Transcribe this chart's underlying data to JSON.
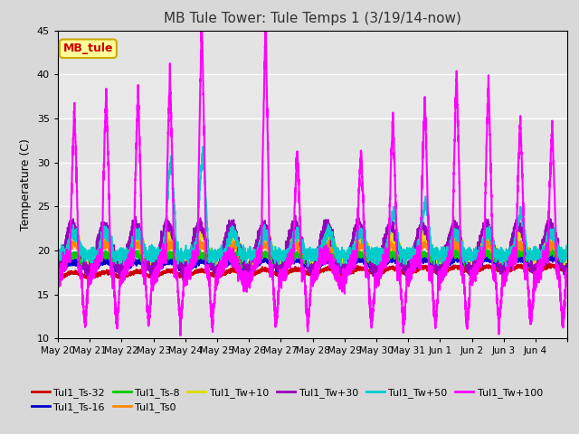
{
  "title": "MB Tule Tower: Tule Temps 1 (3/19/14-now)",
  "ylabel": "Temperature (C)",
  "ylim": [
    10,
    45
  ],
  "yticks": [
    10,
    15,
    20,
    25,
    30,
    35,
    40,
    45
  ],
  "fig_bg": "#d8d8d8",
  "plot_bg": "#e8e8e8",
  "legend_box_facecolor": "#ffff99",
  "legend_box_edgecolor": "#ccaa00",
  "legend_label": "MB_tule",
  "series": [
    {
      "name": "Tul1_Ts-32",
      "color": "#cc0000",
      "base": 17.5,
      "trend": 0.5,
      "daily_amp": 0.3,
      "noise": 0.15
    },
    {
      "name": "Tul1_Ts-16",
      "color": "#0000cc",
      "base": 18.2,
      "trend": 0.3,
      "daily_amp": 0.5,
      "noise": 0.2
    },
    {
      "name": "Tul1_Ts-8",
      "color": "#00cc00",
      "base": 18.8,
      "trend": 0.2,
      "daily_amp": 0.7,
      "noise": 0.2
    },
    {
      "name": "Tul1_Ts0",
      "color": "#ff8800",
      "base": 19.5,
      "trend": 0.1,
      "daily_amp": 1.2,
      "noise": 0.3
    },
    {
      "name": "Tul1_Tw+10",
      "color": "#dddd00",
      "base": 20.0,
      "trend": 0.0,
      "daily_amp": 1.8,
      "noise": 0.4
    },
    {
      "name": "Tul1_Tw+30",
      "color": "#9900bb",
      "base": 20.5,
      "trend": 0.0,
      "daily_amp": 2.5,
      "noise": 0.5
    },
    {
      "name": "Tul1_Tw+50",
      "color": "#00cccc",
      "base": 20.0,
      "trend": 0.0,
      "daily_amp": 5.0,
      "noise": 0.5
    },
    {
      "name": "Tul1_Tw+100",
      "color": "#ff00ff",
      "base": 19.0,
      "trend": 0.0,
      "daily_amp": 18.0,
      "noise": 0.8
    }
  ],
  "n_days": 16,
  "x_tick_labels": [
    "May 20",
    "May 21",
    "May 22",
    "May 23",
    "May 24",
    "May 25",
    "May 26",
    "May 27",
    "May 28",
    "May 29",
    "May 30",
    "May 31",
    "Jun 1",
    "Jun 2",
    "Jun 3",
    "Jun 4"
  ],
  "spike_days_magenta": [
    0,
    1,
    2,
    3,
    4,
    6,
    7,
    9,
    10,
    11,
    12,
    13,
    14,
    15
  ],
  "spike_heights_magenta": [
    35,
    37,
    37,
    39,
    45,
    44,
    30,
    30,
    34,
    36,
    39,
    38,
    34,
    33
  ],
  "spike_days_cyan": [
    3,
    4,
    10,
    11,
    14
  ],
  "spike_heights_cyan": [
    28,
    29,
    22,
    23,
    22
  ]
}
